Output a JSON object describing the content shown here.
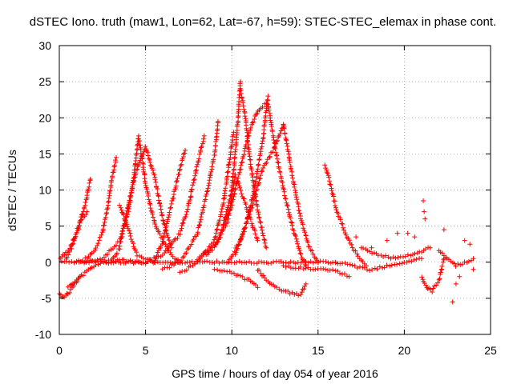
{
  "chart_data": {
    "type": "scatter",
    "title": "dSTEC Iono. truth (maw1, Lon=62, Lat=-67, h=59): STEC-STEC_elemax in phase cont.",
    "xlabel": "GPS time / hours of day 054 of year 2016",
    "ylabel": "dSTEC  / TECUs",
    "xlim": [
      0,
      25
    ],
    "ylim": [
      -10,
      30
    ],
    "xticks": [
      0,
      5,
      10,
      15,
      20,
      25
    ],
    "yticks": [
      -10,
      -5,
      0,
      5,
      10,
      15,
      20,
      25,
      30
    ],
    "grid": true,
    "marker": "+",
    "color": "#ff0000",
    "arcs": [
      {
        "x": [
          0.0,
          0.3,
          0.6,
          0.9,
          1.2,
          1.5,
          1.8
        ],
        "y": [
          0.5,
          1.0,
          2.0,
          3.5,
          5.5,
          8.0,
          11.5
        ]
      },
      {
        "x": [
          0.0,
          0.3,
          0.6,
          0.9,
          1.2
        ],
        "y": [
          -4.5,
          -4.8,
          -4.2,
          -3.0,
          -2.0
        ]
      },
      {
        "x": [
          1.0,
          1.5,
          2.0,
          2.5,
          2.8,
          3.0,
          3.3
        ],
        "y": [
          0.0,
          0.5,
          1.5,
          4.0,
          7.5,
          11.0,
          14.5
        ]
      },
      {
        "x": [
          1.5,
          2.5,
          3.5,
          4.0,
          4.3,
          4.5,
          4.6
        ],
        "y": [
          0.0,
          0.5,
          3.0,
          7.0,
          11.5,
          15.5,
          17.5
        ]
      },
      {
        "x": [
          4.6,
          4.8,
          5.0,
          5.3,
          5.6,
          6.0,
          6.5,
          7.0
        ],
        "y": [
          17.0,
          14.5,
          11.0,
          7.5,
          5.0,
          3.0,
          1.0,
          0.0
        ]
      },
      {
        "x": [
          3.0,
          3.5,
          4.0,
          4.5,
          5.0,
          5.5,
          6.0,
          6.5
        ],
        "y": [
          0.0,
          2.0,
          8.0,
          13.0,
          16.0,
          12.0,
          6.0,
          2.0
        ]
      },
      {
        "x": [
          3.5,
          4.5,
          5.5,
          6.0,
          6.5,
          7.0,
          7.3
        ],
        "y": [
          8.0,
          1.0,
          0.0,
          3.0,
          8.0,
          13.0,
          15.5
        ]
      },
      {
        "x": [
          5.0,
          6.0,
          7.0,
          7.5,
          8.0,
          8.4
        ],
        "y": [
          0.0,
          1.0,
          4.0,
          8.0,
          13.5,
          17.5
        ]
      },
      {
        "x": [
          6.0,
          7.0,
          8.0,
          8.5,
          9.0,
          9.2
        ],
        "y": [
          -1.0,
          0.0,
          4.0,
          9.0,
          15.0,
          19.5
        ]
      },
      {
        "x": [
          7.0,
          8.0,
          9.0,
          9.5,
          9.8,
          10.1
        ],
        "y": [
          -1.5,
          0.0,
          3.0,
          8.0,
          13.0,
          18.0
        ]
      },
      {
        "x": [
          8.0,
          9.0,
          9.5,
          10.0,
          10.3,
          10.5
        ],
        "y": [
          0.5,
          2.0,
          5.0,
          10.0,
          18.0,
          25.0
        ]
      },
      {
        "x": [
          10.5,
          10.8,
          11.0,
          11.3,
          11.6,
          12.0
        ],
        "y": [
          24.0,
          20.0,
          15.0,
          10.0,
          6.0,
          2.0
        ]
      },
      {
        "x": [
          8.5,
          9.2,
          9.8,
          10.2,
          10.8,
          11.5
        ],
        "y": [
          1.0,
          3.0,
          6.0,
          12.0,
          8.0,
          3.0
        ]
      },
      {
        "x": [
          10.2,
          10.8,
          11.3,
          11.8,
          12.1
        ],
        "y": [
          1.0,
          5.0,
          10.0,
          17.0,
          23.0
        ]
      },
      {
        "x": [
          12.1,
          12.5,
          13.0,
          13.5,
          14.0,
          14.3
        ],
        "y": [
          22.0,
          16.0,
          10.0,
          5.0,
          1.0,
          -0.5
        ]
      },
      {
        "x": [
          9.8,
          10.5,
          11.2,
          11.8,
          12.5,
          13.0
        ],
        "y": [
          0.0,
          3.0,
          8.0,
          13.0,
          16.0,
          19.0
        ]
      },
      {
        "x": [
          13.0,
          13.5,
          14.0,
          14.5,
          15.0
        ],
        "y": [
          19.0,
          12.0,
          6.0,
          2.0,
          0.0
        ]
      },
      {
        "x": [
          9.5,
          10.0,
          10.5,
          11.0,
          11.5,
          12.0
        ],
        "y": [
          5.0,
          8.0,
          13.0,
          18.0,
          21.0,
          22.0
        ]
      },
      {
        "x": [
          11.5,
          12.0,
          12.5,
          13.0,
          13.5,
          14.0,
          14.3
        ],
        "y": [
          -1.0,
          -2.5,
          -3.5,
          -4.0,
          -4.3,
          -4.5,
          -3.0
        ]
      },
      {
        "x": [
          9.0,
          10.0,
          11.0,
          11.5
        ],
        "y": [
          -1.0,
          -1.5,
          -2.5,
          -3.5
        ]
      },
      {
        "x": [
          15.4,
          15.8,
          16.1,
          16.5,
          17.0,
          17.4,
          17.8
        ],
        "y": [
          13.5,
          10.0,
          7.0,
          4.5,
          2.0,
          0.5,
          -0.5
        ]
      },
      {
        "x": [
          13.0,
          14.0,
          15.0,
          16.0,
          16.8
        ],
        "y": [
          -0.5,
          -0.8,
          -1.0,
          -1.2,
          -2.0
        ]
      },
      {
        "x": [
          16.0,
          17.0,
          18.0,
          19.0,
          20.0,
          21.0
        ],
        "y": [
          0.0,
          -0.5,
          -1.0,
          -0.5,
          0.0,
          0.5
        ]
      },
      {
        "x": [
          17.5,
          18.5,
          19.5,
          20.5,
          21.5
        ],
        "y": [
          2.0,
          1.0,
          0.5,
          1.0,
          2.0
        ]
      },
      {
        "x": [
          21.0,
          21.3,
          21.6,
          22.0,
          22.3
        ],
        "y": [
          -2.0,
          -3.5,
          -4.0,
          -2.5,
          0.5
        ]
      },
      {
        "x": [
          22.0,
          22.5,
          23.0,
          23.5,
          24.0
        ],
        "y": [
          1.5,
          0.5,
          -0.5,
          0.0,
          0.5
        ]
      },
      {
        "x": [
          0.0,
          2.0,
          4.0,
          6.0,
          8.0,
          10.0,
          12.0,
          14.0,
          16.0
        ],
        "y": [
          0.0,
          0.0,
          0.0,
          0.0,
          0.0,
          0.0,
          0.0,
          0.0,
          0.0
        ]
      },
      {
        "x": [
          0.5,
          1.0,
          1.5,
          2.0,
          2.5,
          3.0,
          3.5,
          4.0,
          4.5,
          5.0
        ],
        "y": [
          -3.5,
          -2.5,
          -1.5,
          -0.5,
          0.0,
          0.2,
          0.3,
          0.2,
          0.0,
          -0.2
        ]
      },
      {
        "x": [
          0.4,
          0.7,
          1.0,
          1.3,
          1.6
        ],
        "y": [
          0.5,
          2.0,
          4.0,
          6.0,
          7.0
        ]
      }
    ],
    "scatter_points": {
      "x": [
        21.1,
        21.15,
        21.2,
        22.8,
        23.5,
        23.2,
        23.8,
        24.0,
        20.6,
        19.6,
        17.2,
        18.1,
        19.0,
        20.2,
        22.3,
        23.0
      ],
      "y": [
        8.5,
        7.0,
        6.0,
        -5.5,
        3.0,
        -2.0,
        2.5,
        -1.0,
        3.5,
        4.0,
        3.5,
        2.0,
        3.0,
        4.0,
        4.5,
        -3.0
      ]
    }
  }
}
